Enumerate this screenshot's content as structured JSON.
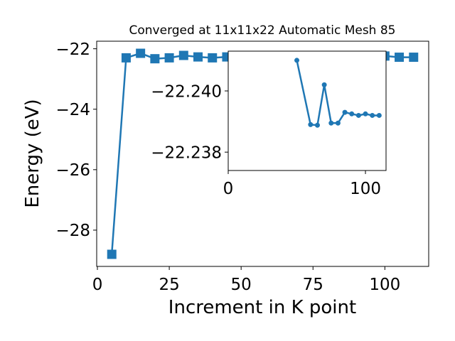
{
  "chart_data": [
    {
      "type": "line",
      "title": "Converged at 11x11x22 Automatic Mesh 85",
      "xlabel": "Increment in K point",
      "ylabel": "Energy (eV)",
      "xlim": [
        -0.25,
        115.25
      ],
      "ylim": [
        -29.2,
        -21.75
      ],
      "xticks": [
        0,
        25,
        50,
        75,
        100
      ],
      "yticks": [
        -28,
        -26,
        -24,
        -22
      ],
      "xtick_labels": [
        "0",
        "25",
        "50",
        "75",
        "100"
      ],
      "ytick_labels": [
        "−28",
        "−26",
        "−24",
        "−22"
      ],
      "marker": "square",
      "color": "#1f77b4",
      "grid": false,
      "series": [
        {
          "x": [
            5,
            10,
            15,
            20,
            25,
            30,
            35,
            40,
            45,
            50,
            55,
            60,
            65,
            70,
            75,
            80,
            85,
            90,
            95,
            100,
            105,
            110
          ],
          "values": [
            -28.8,
            -22.3,
            -22.15,
            -22.33,
            -22.3,
            -22.22,
            -22.27,
            -22.3,
            -22.27,
            -22.24,
            -22.24,
            -22.24,
            -22.24,
            -22.24,
            -22.24,
            -22.24,
            -22.24,
            -22.24,
            -22.24,
            -22.24,
            -22.28,
            -22.28
          ]
        }
      ]
    },
    {
      "type": "line",
      "title": "",
      "xlabel": "",
      "ylabel": "",
      "xlim": [
        0,
        115
      ],
      "ylim": [
        -22.2374,
        -22.2413
      ],
      "xticks": [
        0,
        100
      ],
      "yticks": [
        -22.24,
        -22.238
      ],
      "xtick_labels": [
        "0",
        "100"
      ],
      "ytick_labels": [
        "−22.240",
        "−22.238"
      ],
      "marker": "circle",
      "color": "#1f77b4",
      "grid": false,
      "series": [
        {
          "x": [
            50,
            60,
            65,
            70,
            75,
            80,
            85,
            90,
            95,
            100,
            105,
            110
          ],
          "values": [
            -22.241,
            -22.2389,
            -22.23888,
            -22.2402,
            -22.23895,
            -22.23895,
            -22.2393,
            -22.23925,
            -22.2392,
            -22.23925,
            -22.2392,
            -22.2392
          ]
        }
      ]
    }
  ]
}
